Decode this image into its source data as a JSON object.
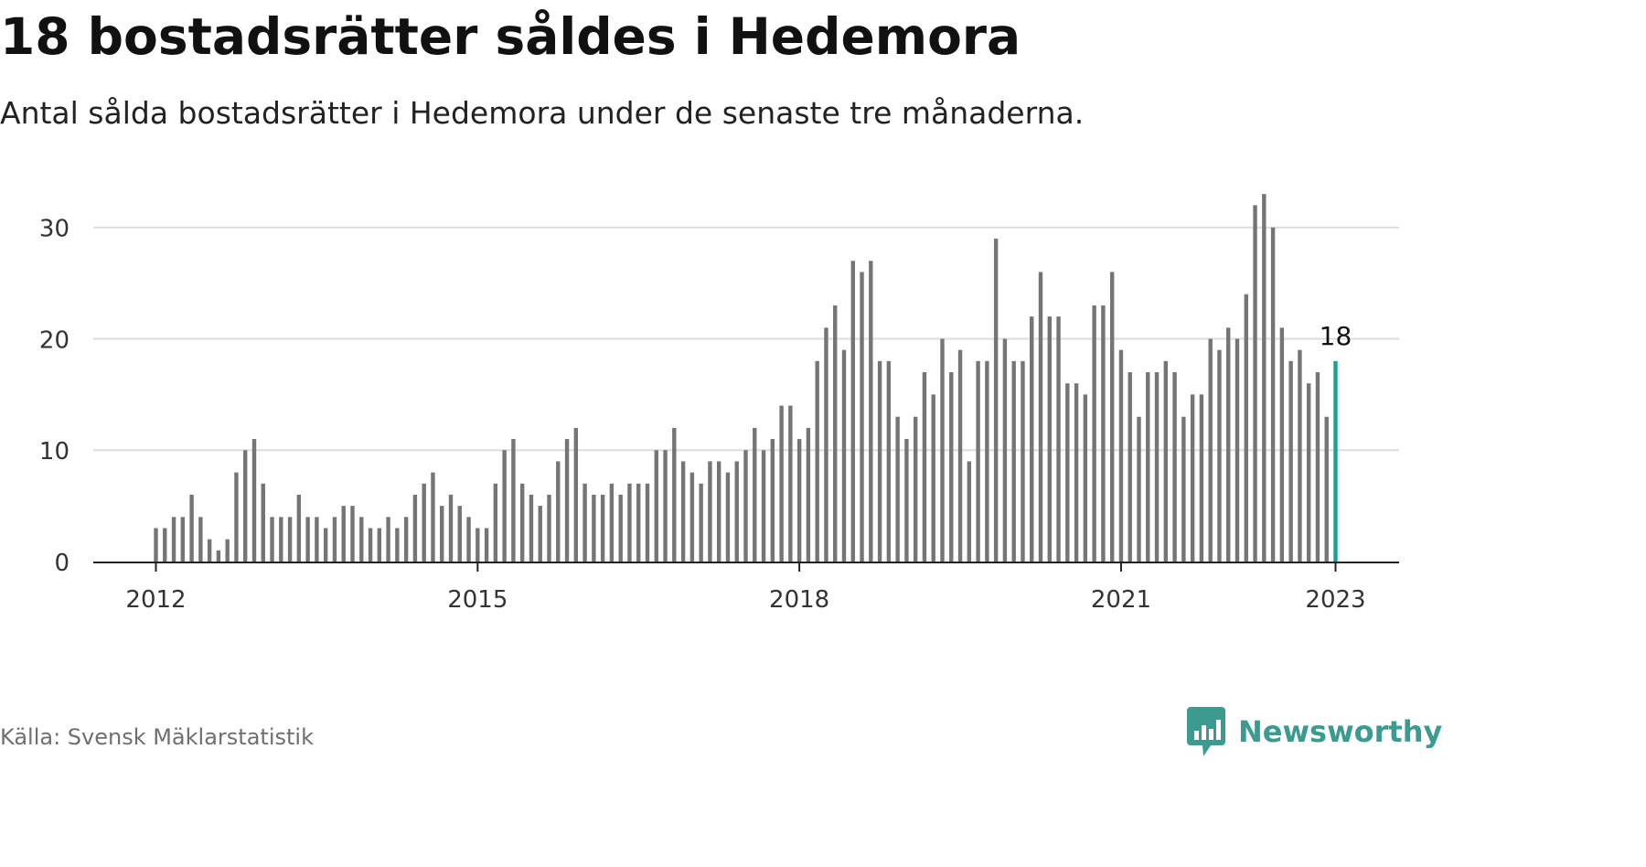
{
  "title": "18 bostadsrätter såldes i Hedemora",
  "subtitle": "Antal sålda bostadsrätter i Hedemora under de senaste tre månaderna.",
  "source": "Källa: Svensk Mäklarstatistik",
  "brand": {
    "name": "Newsworthy",
    "icon": "newsworthy-logo-icon",
    "color": "#3a9b8e"
  },
  "colors": {
    "bar": "#757575",
    "highlight": "#1fa08f",
    "grid": "#dddddd",
    "axis": "#222222"
  },
  "chart_data": {
    "type": "bar",
    "x_start": "2012-01",
    "x_end": "2023-01",
    "x_ticks": [
      "2012",
      "2015",
      "2018",
      "2021",
      "2023"
    ],
    "y_ticks": [
      "0",
      "10",
      "20",
      "30"
    ],
    "ylim": [
      0,
      34
    ],
    "grid": true,
    "highlight_label": "18",
    "values": [
      3,
      3,
      4,
      4,
      6,
      4,
      2,
      1,
      2,
      8,
      10,
      11,
      7,
      4,
      4,
      4,
      6,
      4,
      4,
      3,
      4,
      5,
      5,
      4,
      3,
      3,
      4,
      3,
      4,
      6,
      7,
      8,
      5,
      6,
      5,
      4,
      3,
      3,
      7,
      10,
      11,
      7,
      6,
      5,
      6,
      9,
      11,
      12,
      7,
      6,
      6,
      7,
      6,
      7,
      7,
      7,
      10,
      10,
      12,
      9,
      8,
      7,
      9,
      9,
      8,
      9,
      10,
      12,
      10,
      11,
      14,
      14,
      11,
      12,
      18,
      21,
      23,
      19,
      27,
      26,
      27,
      18,
      18,
      13,
      11,
      13,
      17,
      15,
      20,
      17,
      19,
      9,
      18,
      18,
      29,
      20,
      18,
      18,
      22,
      26,
      22,
      22,
      16,
      16,
      15,
      23,
      23,
      26,
      19,
      17,
      13,
      17,
      17,
      18,
      17,
      13,
      15,
      15,
      20,
      19,
      21,
      20,
      24,
      32,
      33,
      30,
      21,
      18,
      19,
      16,
      17,
      13,
      18
    ]
  }
}
